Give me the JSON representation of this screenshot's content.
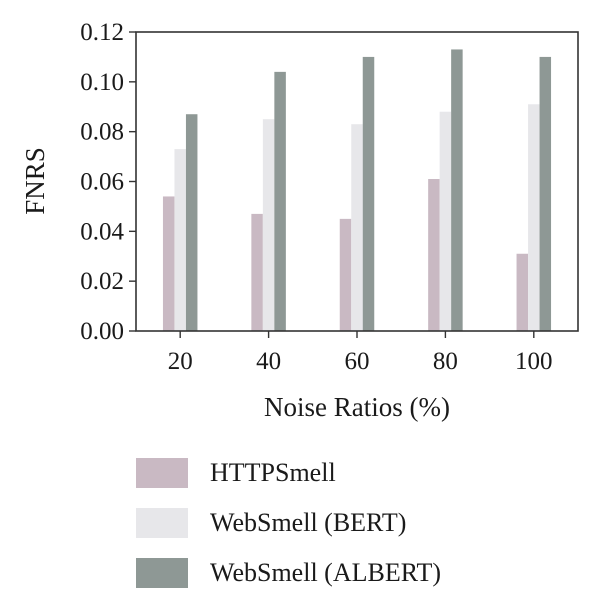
{
  "chart_data": {
    "type": "bar",
    "xlabel": "Noise Ratios (%)",
    "ylabel": "FNRS",
    "categories": [
      "20",
      "40",
      "60",
      "80",
      "100"
    ],
    "ylim": [
      0,
      0.12
    ],
    "yticks": [
      "0.00",
      "0.02",
      "0.04",
      "0.06",
      "0.08",
      "0.10",
      "0.12"
    ],
    "series": [
      {
        "name": "HTTPSmell",
        "color": "#c9b9c3",
        "values": [
          0.054,
          0.047,
          0.045,
          0.061,
          0.031
        ]
      },
      {
        "name": "WebSmell (BERT)",
        "color": "#e7e7ea",
        "values": [
          0.073,
          0.085,
          0.083,
          0.088,
          0.091
        ]
      },
      {
        "name": "WebSmell (ALBERT)",
        "color": "#8e9895",
        "values": [
          0.087,
          0.104,
          0.11,
          0.113,
          0.11
        ]
      }
    ],
    "grid": false,
    "legend_position": "bottom"
  }
}
